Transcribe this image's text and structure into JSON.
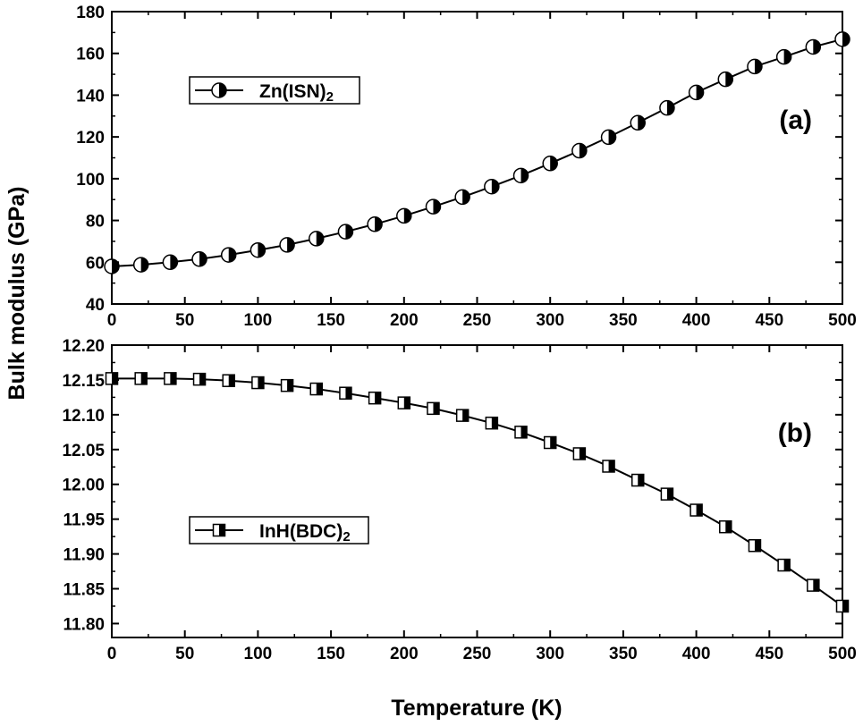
{
  "chart_data": [
    {
      "type": "line",
      "panel_label": "(a)",
      "x": [
        0,
        20,
        40,
        60,
        80,
        100,
        120,
        140,
        160,
        180,
        200,
        220,
        240,
        260,
        280,
        300,
        320,
        340,
        360,
        380,
        400,
        420,
        440,
        460,
        480,
        500
      ],
      "series": [
        {
          "name_main": "Zn(ISN)",
          "name_sub": "2",
          "marker": "half-filled-circle",
          "values": [
            58,
            58.8,
            60,
            61.5,
            63.5,
            65.8,
            68.3,
            71.3,
            74.6,
            78.2,
            82.2,
            86.6,
            91.2,
            96.2,
            101.5,
            107.3,
            113.4,
            119.9,
            126.8,
            133.9,
            141.3,
            147.6,
            153.7,
            158.3,
            163.1,
            166.8
          ]
        }
      ],
      "xlim": [
        0,
        500
      ],
      "ylim": [
        40,
        180
      ],
      "xticks": [
        "0",
        "50",
        "100",
        "150",
        "200",
        "250",
        "300",
        "350",
        "400",
        "450",
        "500"
      ],
      "yticks": [
        "40",
        "60",
        "80",
        "100",
        "120",
        "140",
        "160",
        "180"
      ],
      "legend_position": "upper-left"
    },
    {
      "type": "line",
      "panel_label": "(b)",
      "x": [
        0,
        20,
        40,
        60,
        80,
        100,
        120,
        140,
        160,
        180,
        200,
        220,
        240,
        260,
        280,
        300,
        320,
        340,
        360,
        380,
        400,
        420,
        440,
        460,
        480,
        500
      ],
      "series": [
        {
          "name_main": "InH(BDC)",
          "name_sub": "2",
          "marker": "half-filled-square",
          "values": [
            12.152,
            12.152,
            12.152,
            12.151,
            12.149,
            12.146,
            12.142,
            12.137,
            12.131,
            12.124,
            12.117,
            12.109,
            12.099,
            12.088,
            12.075,
            12.06,
            12.044,
            12.026,
            12.006,
            11.986,
            11.963,
            11.939,
            11.912,
            11.884,
            11.855,
            11.825
          ]
        }
      ],
      "xlim": [
        0,
        500
      ],
      "ylim": [
        11.78,
        12.2
      ],
      "xticks": [
        "0",
        "50",
        "100",
        "150",
        "200",
        "250",
        "300",
        "350",
        "400",
        "450",
        "500"
      ],
      "yticks": [
        "11.80",
        "11.85",
        "11.90",
        "11.95",
        "12.00",
        "12.05",
        "12.10",
        "12.15",
        "12.20"
      ],
      "legend_position": "lower-left"
    }
  ],
  "ylabel": "Bulk modulus (GPa)",
  "xlabel": "Temperature (K)"
}
